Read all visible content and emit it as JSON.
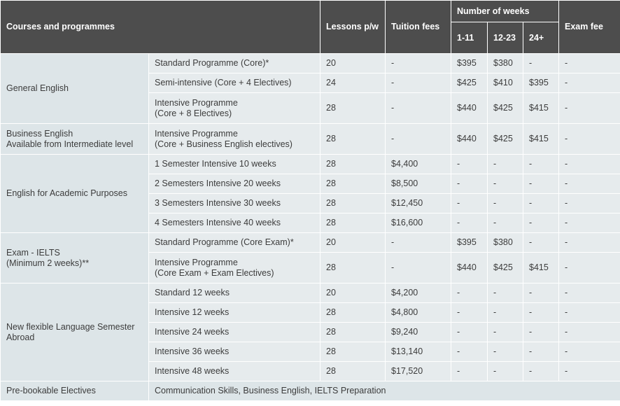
{
  "table": {
    "headers": {
      "courses": "Courses and programmes",
      "lessons": "Lessons p/w",
      "tuition": "Tuition fees",
      "weeks_group": "Number of weeks",
      "weeks_1": "1-11",
      "weeks_2": "12-23",
      "weeks_3": "24+",
      "exam_fee": "Exam fee"
    },
    "groups": [
      {
        "name": "General English",
        "rows": [
          {
            "programme": "Standard Programme (Core)*",
            "lessons": "20",
            "tuition": "-",
            "w1": "$395",
            "w2": "$380",
            "w3": "-",
            "exam": "-"
          },
          {
            "programme": "Semi-intensive (Core + 4 Electives)",
            "lessons": "24",
            "tuition": "-",
            "w1": "$425",
            "w2": "$410",
            "w3": "$395",
            "exam": "-"
          },
          {
            "programme": "Intensive Programme\n(Core + 8 Electives)",
            "lessons": "28",
            "tuition": "-",
            "w1": "$440",
            "w2": "$425",
            "w3": "$415",
            "exam": "-"
          }
        ]
      },
      {
        "name": "Business English\nAvailable from Intermediate level",
        "rows": [
          {
            "programme": "Intensive Programme\n(Core + Business English electives)",
            "lessons": "28",
            "tuition": "-",
            "w1": "$440",
            "w2": "$425",
            "w3": "$415",
            "exam": "-"
          }
        ]
      },
      {
        "name": "English for Academic Purposes",
        "rows": [
          {
            "programme": "1 Semester Intensive 10 weeks",
            "lessons": "28",
            "tuition": "$4,400",
            "w1": "-",
            "w2": "-",
            "w3": "-",
            "exam": "-"
          },
          {
            "programme": "2 Semesters Intensive 20 weeks",
            "lessons": "28",
            "tuition": "$8,500",
            "w1": "-",
            "w2": "-",
            "w3": "-",
            "exam": "-"
          },
          {
            "programme": "3 Semesters Intensive 30 weeks",
            "lessons": "28",
            "tuition": "$12,450",
            "w1": "-",
            "w2": "-",
            "w3": "-",
            "exam": "-"
          },
          {
            "programme": "4 Semesters Intensive 40 weeks",
            "lessons": "28",
            "tuition": "$16,600",
            "w1": "-",
            "w2": "-",
            "w3": "-",
            "exam": "-"
          }
        ]
      },
      {
        "name": "Exam - IELTS\n(Minimum 2 weeks)**",
        "rows": [
          {
            "programme": "Standard Programme (Core Exam)*",
            "lessons": "20",
            "tuition": "-",
            "w1": "$395",
            "w2": "$380",
            "w3": "-",
            "exam": "-"
          },
          {
            "programme": "Intensive Programme\n(Core Exam + Exam Electives)",
            "lessons": "28",
            "tuition": "-",
            "w1": "$440",
            "w2": "$425",
            "w3": "$415",
            "exam": "-"
          }
        ]
      },
      {
        "name": "New flexible Language Semester\nAbroad",
        "rows": [
          {
            "programme": "Standard 12 weeks",
            "lessons": "20",
            "tuition": "$4,200",
            "w1": "-",
            "w2": "-",
            "w3": "-",
            "exam": "-"
          },
          {
            "programme": "Intensive 12 weeks",
            "lessons": "28",
            "tuition": "$4,800",
            "w1": "-",
            "w2": "-",
            "w3": "-",
            "exam": "-"
          },
          {
            "programme": "Intensive 24 weeks",
            "lessons": "28",
            "tuition": "$9,240",
            "w1": "-",
            "w2": "-",
            "w3": "-",
            "exam": "-"
          },
          {
            "programme": "Intensive 36 weeks",
            "lessons": "28",
            "tuition": "$13,140",
            "w1": "-",
            "w2": "-",
            "w3": "-",
            "exam": "-"
          },
          {
            "programme": "Intensive 48 weeks",
            "lessons": "28",
            "tuition": "$17,520",
            "w1": "-",
            "w2": "-",
            "w3": "-",
            "exam": "-"
          }
        ]
      }
    ],
    "electives": {
      "label": "Pre-bookable Electives",
      "value": "Communication Skills, Business English, IELTS Preparation"
    }
  }
}
